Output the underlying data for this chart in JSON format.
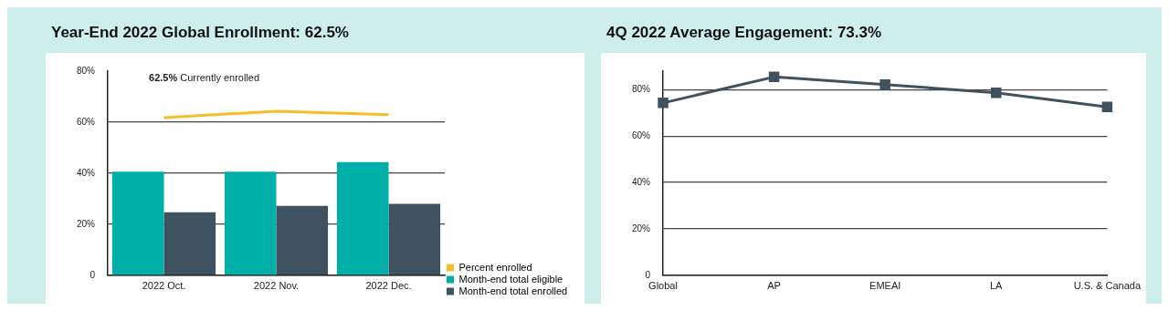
{
  "chart_data": [
    {
      "type": "bar",
      "title": "Year-End 2022 Global Enrollment: 62.5%",
      "categories": [
        "2022 Oct.",
        "2022 Nov.",
        "2022 Dec."
      ],
      "series": [
        {
          "name": "Percent enrolled",
          "type": "line",
          "color": "#f5bf2c",
          "values": [
            61.8,
            64.3,
            62.9
          ]
        },
        {
          "name": "Month-end total eligible",
          "color": "#00b0a8",
          "values": [
            40.6,
            40.6,
            44.3
          ]
        },
        {
          "name": "Month-end total enrolled",
          "color": "#3f5260",
          "values": [
            24.7,
            27.2,
            28.0
          ]
        }
      ],
      "ylim": [
        0,
        80
      ],
      "yticks": [
        0,
        {
          "value": 20,
          "label": "20%"
        },
        {
          "value": 40,
          "label": "40%"
        },
        {
          "value": 60,
          "label": "60%"
        },
        {
          "value": 80,
          "label": "80%"
        }
      ],
      "grid": "y",
      "legend": "right",
      "annotations": [
        "62.5% Currently enrolled"
      ]
    },
    {
      "type": "line",
      "title": "4Q 2022 Average Engagement: 73.3%",
      "categories": [
        "Global",
        "AP",
        "EMEAI",
        "LA",
        "U.S. & Canada"
      ],
      "series": [
        {
          "color": "#3f5260",
          "values": [
            74.3,
            85.5,
            82.2,
            78.7,
            72.6
          ]
        }
      ],
      "ylim": [
        0,
        88
      ],
      "yticks": [
        0,
        {
          "value": 20,
          "label": "20%"
        },
        {
          "value": 40,
          "label": "40%"
        },
        {
          "value": 60,
          "label": "60%"
        },
        {
          "value": 80,
          "label": "80%"
        }
      ],
      "grid": "y",
      "marker": "square"
    }
  ]
}
